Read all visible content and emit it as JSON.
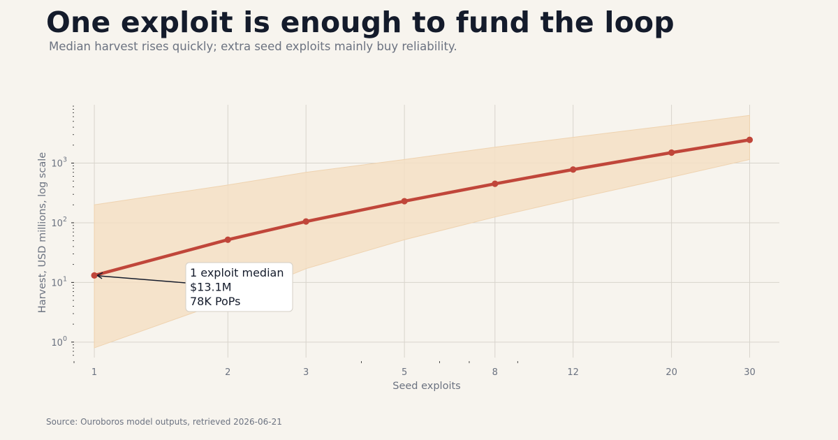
{
  "header": {
    "title": "One exploit is enough to fund the loop",
    "subtitle": "Median harvest rises quickly; extra seed exploits mainly buy reliability."
  },
  "footer": {
    "source": "Source: Ouroboros model outputs, retrieved 2026-06-21"
  },
  "colors": {
    "background": "#f7f4ee",
    "line": "#c0463a",
    "band": "#f5dfc4",
    "grid": "#d8d4cc",
    "text": "#141b2b",
    "muted": "#6b7280"
  },
  "chart_data": {
    "type": "line",
    "title": "One exploit is enough to fund the loop",
    "subtitle": "Median harvest rises quickly; extra seed exploits mainly buy reliability.",
    "xlabel": "Seed exploits",
    "ylabel": "Harvest, USD millions, log scale",
    "x_scale": "log",
    "y_scale": "log",
    "xlim": [
      0.9,
      35
    ],
    "ylim": [
      0.55,
      9500
    ],
    "x_ticks": [
      1,
      2,
      3,
      5,
      8,
      12,
      20,
      30
    ],
    "x_tick_labels": [
      "1",
      "2",
      "3",
      "5",
      "8",
      "12",
      "20",
      "30"
    ],
    "y_ticks": [
      1,
      10,
      100,
      1000
    ],
    "y_tick_labels": [
      {
        "base": "10",
        "exp": "0"
      },
      {
        "base": "10",
        "exp": "1"
      },
      {
        "base": "10",
        "exp": "2"
      },
      {
        "base": "10",
        "exp": "3"
      }
    ],
    "grid": true,
    "series": [
      {
        "x": [
          1,
          2,
          3,
          5,
          8,
          12,
          20,
          30
        ],
        "values": [
          13.1,
          52,
          105,
          230,
          450,
          780,
          1500,
          2450
        ]
      }
    ],
    "band": {
      "x": [
        1,
        2,
        3,
        5,
        8,
        12,
        20,
        30
      ],
      "lower": [
        0.8,
        5,
        17,
        52,
        125,
        250,
        580,
        1150
      ],
      "upper": [
        200,
        430,
        700,
        1150,
        1850,
        2700,
        4300,
        6300
      ]
    },
    "annotation": {
      "x": 1,
      "y": 13.1,
      "lines": [
        "1 exploit median",
        "$13.1M",
        "78K PoPs"
      ]
    }
  }
}
